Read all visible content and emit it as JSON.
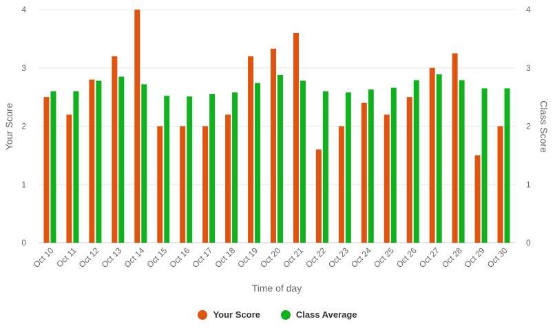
{
  "chart_data": {
    "type": "bar",
    "xlabel": "Time of day",
    "ylabel": "Your Score",
    "y2label": "Class Score",
    "ylim": [
      0,
      4
    ],
    "y2lim": [
      0,
      4
    ],
    "yticks": [
      "0",
      "1",
      "2",
      "3",
      "4"
    ],
    "categories": [
      "Oct 10",
      "Oct 11",
      "Oct 12",
      "Oct 13",
      "Oct 14",
      "Oct 15",
      "Oct 16",
      "Oct 17",
      "Oct 18",
      "Oct 19",
      "Oct 20",
      "Oct 21",
      "Oct 22",
      "Oct 23",
      "Oct 24",
      "Oct 25",
      "Oct 26",
      "Oct 27",
      "Oct 28",
      "Oct 29",
      "Oct 30"
    ],
    "series": [
      {
        "name": "Your Score",
        "color": "#e0540f",
        "axis": "left",
        "values": [
          2.5,
          2.2,
          2.8,
          3.2,
          4.0,
          2.0,
          2.0,
          2.0,
          2.2,
          3.2,
          3.33,
          3.6,
          1.6,
          2.0,
          2.4,
          2.2,
          2.5,
          3.0,
          3.25,
          1.5,
          2.0
        ]
      },
      {
        "name": "Class Average",
        "color": "#10b31e",
        "axis": "right",
        "values": [
          2.6,
          2.6,
          2.78,
          2.85,
          2.72,
          2.52,
          2.51,
          2.55,
          2.58,
          2.74,
          2.88,
          2.78,
          2.6,
          2.58,
          2.63,
          2.66,
          2.79,
          2.89,
          2.79,
          2.65,
          2.65
        ]
      }
    ],
    "grid": true,
    "legend_position": "bottom-center"
  },
  "legend": {
    "items": [
      {
        "label": "Your Score",
        "color": "#e0540f"
      },
      {
        "label": "Class Average",
        "color": "#10b31e"
      }
    ]
  }
}
